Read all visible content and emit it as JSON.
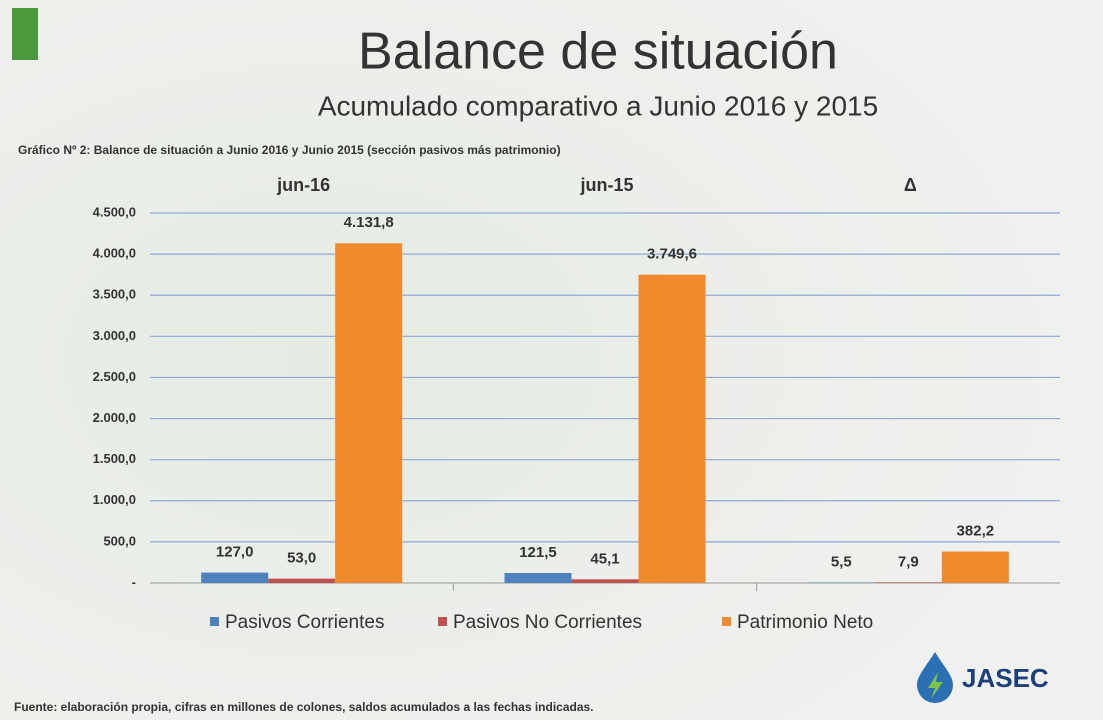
{
  "chart_data": {
    "type": "bar",
    "title": "Balance de situación",
    "subtitle": "Acumulado comparativo a Junio 2016 y 2015",
    "caption": "Gráfico Nº 2: Balance de situación a Junio 2016 y  Junio 2015 (sección pasivos más patrimonio)",
    "categories": [
      "jun-16",
      "jun-15",
      "Δ"
    ],
    "series": [
      {
        "name": "Pasivos Corrientes",
        "color": "#4f81bd",
        "values": [
          127.0,
          121.5,
          5.5
        ],
        "value_labels": [
          "127,0",
          "121,5",
          "5,5"
        ]
      },
      {
        "name": "Pasivos No Corrientes",
        "color": "#c0504d",
        "values": [
          53.0,
          45.1,
          7.9
        ],
        "value_labels": [
          "53,0",
          "45,1",
          "7,9"
        ]
      },
      {
        "name": "Patrimonio Neto",
        "color": "#f08a2c",
        "values": [
          4131.8,
          3749.6,
          382.2
        ],
        "value_labels": [
          "4.131,8",
          "3.749,6",
          "382,2"
        ]
      }
    ],
    "ylim": [
      0,
      4500
    ],
    "yticks": [
      {
        "value": 0,
        "label": "-"
      },
      {
        "value": 500,
        "label": "500,0"
      },
      {
        "value": 1000,
        "label": "1.000,0"
      },
      {
        "value": 1500,
        "label": "1.500,0"
      },
      {
        "value": 2000,
        "label": "2.000,0"
      },
      {
        "value": 2500,
        "label": "2.500,0"
      },
      {
        "value": 3000,
        "label": "3.000,0"
      },
      {
        "value": 3500,
        "label": "3.500,0"
      },
      {
        "value": 4000,
        "label": "4.000,0"
      },
      {
        "value": 4500,
        "label": "4.500,0"
      }
    ],
    "grid": true,
    "legend": "bottom",
    "source": "Fuente: elaboración propia, cifras en millones de colones, saldos acumulados a las fechas indicadas.",
    "logo": "JASEC"
  }
}
